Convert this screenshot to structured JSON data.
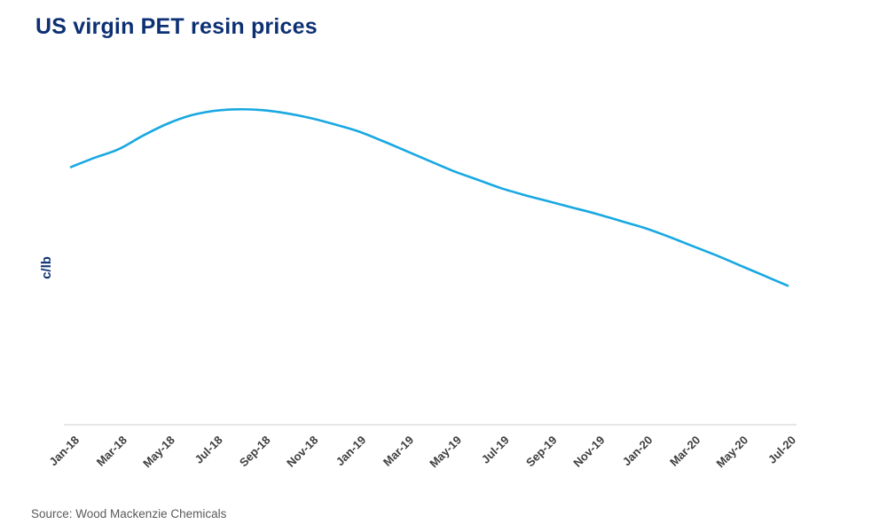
{
  "header": {
    "title": "US virgin PET resin prices"
  },
  "footer": {
    "source": "Source: Wood Mackenzie Chemicals"
  },
  "colors": {
    "title_color": "#0d3074",
    "line_color": "#18a8e2",
    "axis_color": "#cccccc",
    "tick_label_color": "#3d3d3d"
  },
  "chart_data": {
    "type": "line",
    "title": "US virgin PET resin prices",
    "xlabel": "",
    "ylabel": "c/lb",
    "ylim": [
      45,
      75
    ],
    "grid": false,
    "legend": "none",
    "tick_every": 2,
    "x": [
      "Jan-18",
      "Feb-18",
      "Mar-18",
      "Apr-18",
      "May-18",
      "Jun-18",
      "Jul-18",
      "Aug-18",
      "Sep-18",
      "Oct-18",
      "Nov-18",
      "Dec-18",
      "Jan-19",
      "Feb-19",
      "Mar-19",
      "Apr-19",
      "May-19",
      "Jun-19",
      "Jul-19",
      "Aug-19",
      "Sep-19",
      "Oct-19",
      "Nov-19",
      "Dec-19",
      "Jan-20",
      "Feb-20",
      "Mar-20",
      "Apr-20",
      "May-20",
      "Jun-20",
      "Jul-20"
    ],
    "x_tick_labels": [
      "Jan-18",
      "Mar-18",
      "May-18",
      "Jul-18",
      "Sep-18",
      "Nov-18",
      "Jan-19",
      "Mar-19",
      "May-19",
      "Jul-19",
      "Sep-19",
      "Nov-19",
      "Jan-20",
      "Mar-20",
      "May-20",
      "Jul-20"
    ],
    "series": [
      {
        "name": "US virgin PET resin price (c/lb)",
        "values": [
          63.5,
          64.7,
          65.8,
          67.5,
          69.0,
          70.1,
          70.7,
          70.9,
          70.8,
          70.4,
          69.8,
          69.0,
          68.1,
          66.9,
          65.6,
          64.3,
          63.0,
          61.9,
          60.8,
          59.9,
          59.1,
          58.3,
          57.5,
          56.6,
          55.7,
          54.6,
          53.4,
          52.2,
          50.9,
          49.6,
          48.3
        ]
      }
    ]
  }
}
